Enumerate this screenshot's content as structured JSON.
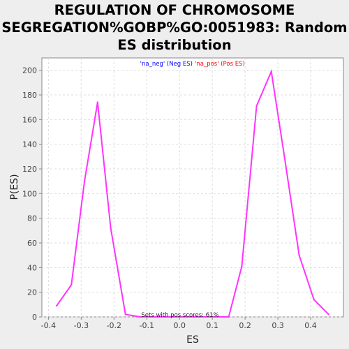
{
  "chart_data": {
    "type": "line",
    "title_lines": [
      "REGULATION OF CHROMOSOME",
      "SEGREGATION%GOBP%GO:0051983: Random",
      "ES distribution"
    ],
    "xlabel": "ES",
    "ylabel": "P(ES)",
    "xlim": [
      -0.42,
      0.5
    ],
    "ylim": [
      0,
      210
    ],
    "x_ticks": [
      "-0.4",
      "-0.3",
      "-0.2",
      "-0.1",
      "0.0",
      "0.1",
      "0.2",
      "0.3",
      "0.4"
    ],
    "y_ticks": [
      "0",
      "20",
      "40",
      "60",
      "80",
      "100",
      "120",
      "140",
      "160",
      "180",
      "200"
    ],
    "grid": true,
    "legend": {
      "position": "top",
      "neg_label": "'na_neg' (Neg ES)",
      "pos_label": "'na_pos' (Pos ES)",
      "neg_color": "#0000ff",
      "pos_color": "#ff0000"
    },
    "line_color": "#ff33ff",
    "annotation": "Sets with pos scores: 61%",
    "series": [
      {
        "x": [
          -0.375,
          -0.33,
          -0.29,
          -0.25,
          -0.21,
          -0.165,
          -0.12,
          -0.08,
          -0.04,
          0.0,
          0.06,
          0.1,
          0.15,
          0.19,
          0.235,
          0.28,
          0.32,
          0.365,
          0.41,
          0.455
        ],
        "y": [
          9,
          26,
          110,
          174,
          72,
          2,
          0,
          0,
          0,
          0,
          0,
          0,
          0,
          41,
          171,
          199,
          130,
          50,
          14,
          2
        ]
      }
    ]
  }
}
